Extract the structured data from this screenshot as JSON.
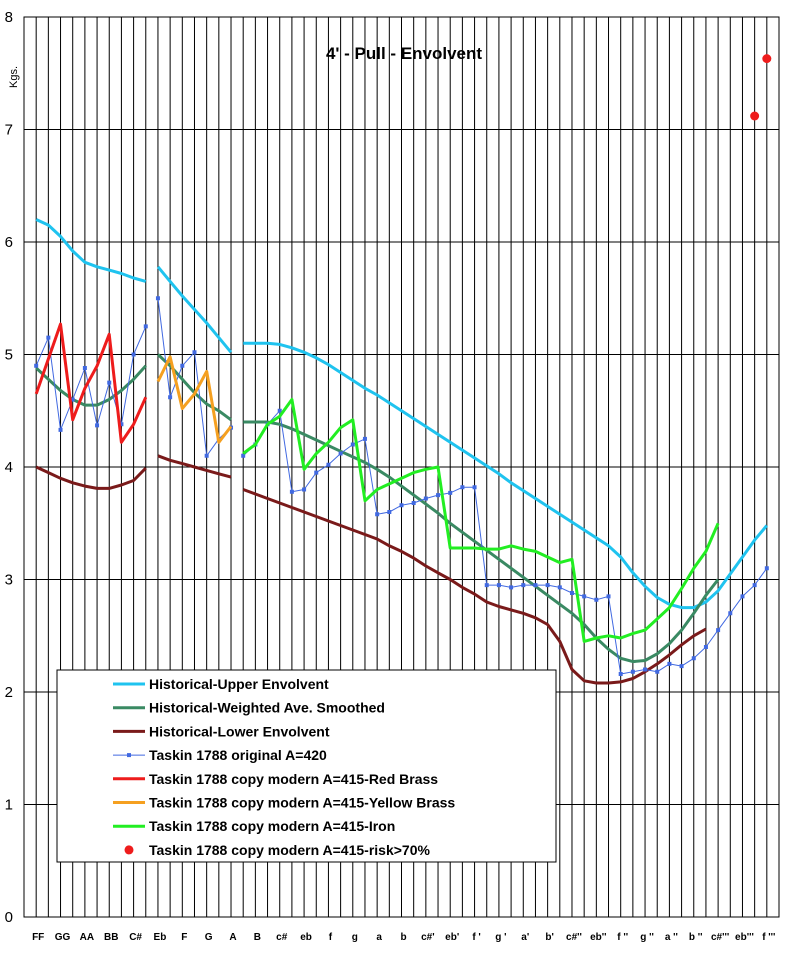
{
  "chart_data": {
    "type": "line",
    "title": "4' - Pull - Envolvent",
    "ylabel": "Kgs.",
    "xlabel": "",
    "ylim": [
      0,
      8
    ],
    "yticks": [
      "0",
      "1",
      "2",
      "3",
      "4",
      "5",
      "6",
      "7",
      "8"
    ],
    "grid": true,
    "legend_position": "bottom-left",
    "background": "#ffffff",
    "x_labels": [
      "FF",
      "GG",
      "AA",
      "BB",
      "C#",
      "Eb",
      "F",
      "G",
      "A",
      "B",
      "c#",
      "eb",
      "f",
      "g",
      "a",
      "b",
      "c#'",
      "eb'",
      "f '",
      "g '",
      "a'",
      "b'",
      "c#''",
      "eb''",
      "f ''",
      "g ''",
      "a ''",
      "b ''",
      "c#'''",
      "eb'''",
      "f '''"
    ],
    "series": [
      {
        "name": "Historical-Upper Envolvent",
        "color": "#1fc3ef",
        "marker": "none",
        "width": 3,
        "points": [
          [
            0,
            6.2
          ],
          [
            0.5,
            6.15
          ],
          [
            1,
            6.05
          ],
          [
            1.5,
            5.92
          ],
          [
            2,
            5.82
          ],
          [
            2.5,
            5.78
          ],
          [
            3,
            5.75
          ],
          [
            3.5,
            5.72
          ],
          [
            4,
            5.68
          ],
          [
            4.5,
            5.65
          ],
          null,
          [
            5,
            5.78
          ],
          [
            5.5,
            5.65
          ],
          [
            6,
            5.52
          ],
          [
            6.5,
            5.4
          ],
          [
            7,
            5.28
          ],
          [
            7.5,
            5.15
          ],
          [
            8,
            5.02
          ],
          null,
          [
            8.5,
            5.1
          ],
          [
            9,
            5.1
          ],
          [
            9.5,
            5.1
          ],
          [
            10,
            5.09
          ],
          [
            10.5,
            5.06
          ],
          [
            11,
            5.02
          ],
          [
            11.5,
            4.97
          ],
          [
            12,
            4.91
          ],
          [
            12.5,
            4.84
          ],
          [
            13,
            4.77
          ],
          [
            13.5,
            4.7
          ],
          [
            14,
            4.64
          ],
          [
            14.5,
            4.57
          ],
          [
            15,
            4.5
          ],
          [
            15.5,
            4.43
          ],
          [
            16,
            4.36
          ],
          [
            16.5,
            4.29
          ],
          [
            17,
            4.22
          ],
          [
            17.5,
            4.15
          ],
          [
            18,
            4.08
          ],
          [
            18.5,
            4.01
          ],
          [
            19,
            3.94
          ],
          [
            19.5,
            3.86
          ],
          [
            20,
            3.79
          ],
          [
            20.5,
            3.72
          ],
          [
            21,
            3.65
          ],
          [
            21.5,
            3.58
          ],
          [
            22,
            3.51
          ],
          [
            22.5,
            3.44
          ],
          [
            23,
            3.37
          ],
          [
            23.5,
            3.3
          ],
          [
            24,
            3.2
          ],
          [
            24.5,
            3.06
          ],
          [
            25,
            2.94
          ],
          [
            25.5,
            2.84
          ],
          [
            26,
            2.78
          ],
          [
            26.5,
            2.75
          ],
          [
            27,
            2.75
          ],
          [
            27.5,
            2.8
          ],
          [
            28,
            2.9
          ],
          [
            28.5,
            3.05
          ],
          [
            29,
            3.2
          ],
          [
            29.5,
            3.35
          ],
          [
            30,
            3.48
          ]
        ]
      },
      {
        "name": "Historical-Weighted Ave. Smoothed",
        "color": "#3a8a63",
        "marker": "none",
        "width": 3,
        "points": [
          [
            0,
            4.88
          ],
          [
            0.5,
            4.78
          ],
          [
            1,
            4.68
          ],
          [
            1.5,
            4.6
          ],
          [
            2,
            4.55
          ],
          [
            2.5,
            4.55
          ],
          [
            3,
            4.6
          ],
          [
            3.5,
            4.68
          ],
          [
            4,
            4.78
          ],
          [
            4.5,
            4.9
          ],
          null,
          [
            5,
            5.0
          ],
          [
            5.5,
            4.9
          ],
          [
            6,
            4.78
          ],
          [
            6.5,
            4.66
          ],
          [
            7,
            4.56
          ],
          [
            7.5,
            4.5
          ],
          [
            8,
            4.42
          ],
          null,
          [
            8.5,
            4.4
          ],
          [
            9,
            4.4
          ],
          [
            9.5,
            4.4
          ],
          [
            10,
            4.38
          ],
          [
            10.5,
            4.34
          ],
          [
            11,
            4.29
          ],
          [
            11.5,
            4.24
          ],
          [
            12,
            4.19
          ],
          [
            12.5,
            4.14
          ],
          [
            13,
            4.09
          ],
          [
            13.5,
            4.04
          ],
          [
            14,
            3.98
          ],
          [
            14.5,
            3.91
          ],
          [
            15,
            3.83
          ],
          [
            15.5,
            3.75
          ],
          [
            16,
            3.67
          ],
          [
            16.5,
            3.59
          ],
          [
            17,
            3.5
          ],
          [
            17.5,
            3.42
          ],
          [
            18,
            3.34
          ],
          [
            18.5,
            3.26
          ],
          [
            19,
            3.18
          ],
          [
            19.5,
            3.1
          ],
          [
            20,
            3.02
          ],
          [
            20.5,
            2.94
          ],
          [
            21,
            2.86
          ],
          [
            21.5,
            2.78
          ],
          [
            22,
            2.7
          ],
          [
            22.5,
            2.6
          ],
          [
            23,
            2.48
          ],
          [
            23.5,
            2.38
          ],
          [
            24,
            2.3
          ],
          [
            24.5,
            2.27
          ],
          [
            25,
            2.28
          ],
          [
            25.5,
            2.34
          ],
          [
            26,
            2.43
          ],
          [
            26.5,
            2.55
          ],
          [
            27,
            2.7
          ],
          [
            27.5,
            2.86
          ],
          [
            28,
            3.0
          ]
        ]
      },
      {
        "name": "Historical-Lower Envolvent",
        "color": "#7a1a1a",
        "marker": "none",
        "width": 3,
        "points": [
          [
            0,
            4.0
          ],
          [
            0.5,
            3.95
          ],
          [
            1,
            3.9
          ],
          [
            1.5,
            3.86
          ],
          [
            2,
            3.83
          ],
          [
            2.5,
            3.81
          ],
          [
            3,
            3.81
          ],
          [
            3.5,
            3.84
          ],
          [
            4,
            3.88
          ],
          [
            4.5,
            3.99
          ],
          null,
          [
            5,
            4.1
          ],
          [
            5.5,
            4.06
          ],
          [
            6,
            4.03
          ],
          [
            6.5,
            4.0
          ],
          [
            7,
            3.97
          ],
          [
            7.5,
            3.94
          ],
          [
            8,
            3.91
          ],
          null,
          [
            8.5,
            3.8
          ],
          [
            9,
            3.76
          ],
          [
            9.5,
            3.72
          ],
          [
            10,
            3.68
          ],
          [
            10.5,
            3.64
          ],
          [
            11,
            3.6
          ],
          [
            11.5,
            3.56
          ],
          [
            12,
            3.52
          ],
          [
            12.5,
            3.48
          ],
          [
            13,
            3.44
          ],
          [
            13.5,
            3.4
          ],
          [
            14,
            3.36
          ],
          [
            14.5,
            3.3
          ],
          [
            15,
            3.25
          ],
          [
            15.5,
            3.19
          ],
          [
            16,
            3.12
          ],
          [
            16.5,
            3.06
          ],
          [
            17,
            3.0
          ],
          [
            17.5,
            2.93
          ],
          [
            18,
            2.87
          ],
          [
            18.5,
            2.8
          ],
          [
            19,
            2.76
          ],
          [
            19.5,
            2.73
          ],
          [
            20,
            2.7
          ],
          [
            20.5,
            2.66
          ],
          [
            21,
            2.6
          ],
          [
            21.5,
            2.45
          ],
          [
            22,
            2.2
          ],
          [
            22.5,
            2.1
          ],
          [
            23,
            2.08
          ],
          [
            23.5,
            2.08
          ],
          [
            24,
            2.09
          ],
          [
            24.5,
            2.12
          ],
          [
            25,
            2.18
          ],
          [
            25.5,
            2.25
          ],
          [
            26,
            2.33
          ],
          [
            26.5,
            2.42
          ],
          [
            27,
            2.5
          ],
          [
            27.5,
            2.56
          ]
        ]
      },
      {
        "name": "Taskin 1788 original A=420",
        "color": "#4169e1",
        "marker": "square",
        "width": 1,
        "points": [
          [
            0,
            4.9
          ],
          [
            0.5,
            5.15
          ],
          [
            1,
            4.33
          ],
          [
            1.5,
            4.6
          ],
          [
            2,
            4.88
          ],
          [
            2.5,
            4.37
          ],
          [
            3,
            4.75
          ],
          [
            3.5,
            4.38
          ],
          [
            4,
            5.0
          ],
          [
            4.5,
            5.25
          ],
          null,
          [
            5,
            5.5
          ],
          [
            5.5,
            4.62
          ],
          [
            6,
            4.9
          ],
          [
            6.5,
            5.02
          ],
          [
            7,
            4.1
          ],
          [
            7.5,
            4.25
          ],
          [
            8,
            4.35
          ],
          null,
          [
            8.5,
            4.1
          ],
          [
            9,
            4.2
          ],
          [
            9.5,
            4.38
          ],
          [
            10,
            4.5
          ],
          [
            10.5,
            3.78
          ],
          [
            11,
            3.8
          ],
          [
            11.5,
            3.95
          ],
          [
            12,
            4.02
          ],
          [
            12.5,
            4.12
          ],
          [
            13,
            4.2
          ],
          [
            13.5,
            4.25
          ],
          [
            14,
            3.58
          ],
          [
            14.5,
            3.6
          ],
          [
            15,
            3.66
          ],
          [
            15.5,
            3.68
          ],
          [
            16,
            3.72
          ],
          [
            16.5,
            3.75
          ],
          [
            17,
            3.77
          ],
          [
            17.5,
            3.82
          ],
          [
            18,
            3.82
          ],
          [
            18.5,
            2.95
          ],
          [
            19,
            2.95
          ],
          [
            19.5,
            2.93
          ],
          [
            20,
            2.95
          ],
          [
            20.5,
            2.95
          ],
          [
            21,
            2.95
          ],
          [
            21.5,
            2.93
          ],
          [
            22,
            2.88
          ],
          [
            22.5,
            2.85
          ],
          [
            23,
            2.82
          ],
          [
            23.5,
            2.85
          ],
          [
            24,
            2.16
          ],
          [
            24.5,
            2.18
          ],
          [
            25,
            2.2
          ],
          [
            25.5,
            2.18
          ],
          [
            26,
            2.25
          ],
          [
            26.5,
            2.23
          ],
          [
            27,
            2.3
          ],
          [
            27.5,
            2.4
          ],
          [
            28,
            2.55
          ],
          [
            28.5,
            2.7
          ],
          [
            29,
            2.85
          ],
          [
            29.5,
            2.95
          ],
          [
            30,
            3.1
          ]
        ]
      },
      {
        "name": "Taskin 1788 copy modern A=415-Red Brass",
        "color": "#ee1c1c",
        "marker": "none",
        "width": 3,
        "points": [
          [
            0,
            4.65
          ],
          [
            1,
            5.27
          ],
          [
            1.5,
            4.42
          ],
          [
            2,
            4.7
          ],
          [
            2.5,
            4.9
          ],
          [
            3,
            5.18
          ],
          [
            3.5,
            4.22
          ],
          [
            4,
            4.38
          ],
          [
            4.5,
            4.62
          ]
        ]
      },
      {
        "name": "Taskin 1788 copy modern A=415-Yellow Brass",
        "color": "#f5a020",
        "marker": "none",
        "width": 3,
        "points": [
          [
            5,
            4.76
          ],
          [
            5.5,
            4.98
          ],
          [
            6,
            4.52
          ],
          [
            6.5,
            4.65
          ],
          [
            7,
            4.85
          ],
          [
            7.5,
            4.22
          ],
          [
            8,
            4.36
          ]
        ]
      },
      {
        "name": "Taskin 1788 copy modern A=415-Iron",
        "color": "#22ee22",
        "marker": "none",
        "width": 3,
        "points": [
          [
            8.5,
            4.12
          ],
          [
            9,
            4.2
          ],
          [
            9.5,
            4.38
          ],
          [
            10,
            4.45
          ],
          [
            10.5,
            4.6
          ],
          [
            11,
            3.98
          ],
          [
            11.5,
            4.12
          ],
          [
            12,
            4.22
          ],
          [
            12.5,
            4.35
          ],
          [
            13,
            4.42
          ],
          [
            13.5,
            3.7
          ],
          [
            14,
            3.8
          ],
          [
            14.5,
            3.85
          ],
          [
            15,
            3.9
          ],
          [
            15.5,
            3.95
          ],
          [
            16,
            3.98
          ],
          [
            16.5,
            4.0
          ],
          [
            17,
            3.28
          ],
          [
            17.5,
            3.28
          ],
          [
            18,
            3.28
          ],
          [
            18.5,
            3.27
          ],
          [
            19,
            3.27
          ],
          [
            19.5,
            3.3
          ],
          [
            20,
            3.27
          ],
          [
            20.5,
            3.25
          ],
          [
            21,
            3.2
          ],
          [
            21.5,
            3.15
          ],
          [
            22,
            3.18
          ],
          [
            22.5,
            2.45
          ],
          [
            23,
            2.48
          ],
          [
            23.5,
            2.5
          ],
          [
            24,
            2.48
          ],
          [
            24.5,
            2.52
          ],
          [
            25,
            2.55
          ],
          [
            25.5,
            2.65
          ],
          [
            26,
            2.75
          ],
          [
            26.5,
            2.92
          ],
          [
            27,
            3.1
          ],
          [
            27.5,
            3.25
          ],
          [
            28,
            3.5
          ]
        ]
      },
      {
        "name": "Taskin 1788 copy modern A=415-risk>70%",
        "color": "#ee1c1c",
        "marker": "dot",
        "width": 0,
        "points": [
          [
            29.5,
            7.12
          ],
          [
            30,
            7.63
          ]
        ]
      }
    ]
  }
}
